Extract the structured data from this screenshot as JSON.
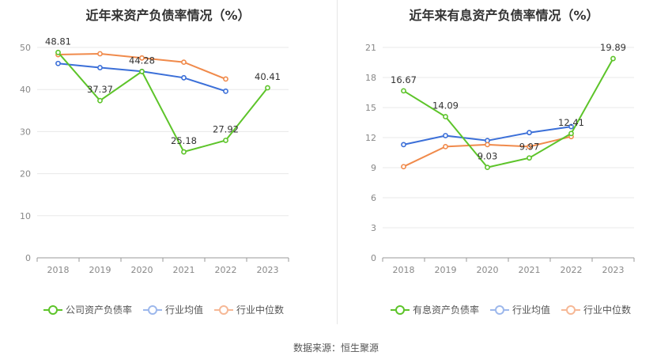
{
  "source": "数据来源：恒生聚源",
  "chart_data": [
    {
      "type": "line",
      "title": "近年来资产负债率情况（%）",
      "categories": [
        "2018",
        "2019",
        "2020",
        "2021",
        "2022",
        "2023"
      ],
      "ylim": [
        0,
        50
      ],
      "yticks": [
        0,
        10,
        20,
        30,
        40,
        50
      ],
      "grid": true,
      "legend_position": "bottom-left",
      "series": [
        {
          "name": "公司资产负债率",
          "color": "#5dc42a",
          "values": [
            48.81,
            37.37,
            44.28,
            25.18,
            27.92,
            40.41
          ],
          "labels": [
            "48.81",
            "37.37",
            "44.28",
            "25.18",
            "27.92",
            "40.41"
          ]
        },
        {
          "name": "行业均值",
          "color": "#3b6fd8",
          "values": [
            46.2,
            45.2,
            44.3,
            42.8,
            39.6,
            null
          ]
        },
        {
          "name": "行业中位数",
          "color": "#f08a4b",
          "values": [
            48.3,
            48.5,
            47.5,
            46.5,
            42.5,
            null
          ]
        }
      ]
    },
    {
      "type": "line",
      "title": "近年来有息资产负债率情况（%）",
      "categories": [
        "2018",
        "2019",
        "2020",
        "2021",
        "2022",
        "2023"
      ],
      "ylim": [
        0,
        21
      ],
      "yticks": [
        0,
        3,
        6,
        9,
        12,
        15,
        18,
        21
      ],
      "grid": true,
      "legend_position": "bottom-left",
      "series": [
        {
          "name": "有息资产负债率",
          "color": "#5dc42a",
          "values": [
            16.67,
            14.09,
            9.03,
            9.97,
            12.41,
            19.89
          ],
          "labels": [
            "16.67",
            "14.09",
            "9.03",
            "9.97",
            "12.41",
            "19.89"
          ]
        },
        {
          "name": "行业均值",
          "color": "#3b6fd8",
          "values": [
            11.3,
            12.2,
            11.7,
            12.5,
            13.1,
            null
          ]
        },
        {
          "name": "行业中位数",
          "color": "#f08a4b",
          "values": [
            9.1,
            11.1,
            11.3,
            11.1,
            12.1,
            null
          ]
        }
      ]
    }
  ]
}
